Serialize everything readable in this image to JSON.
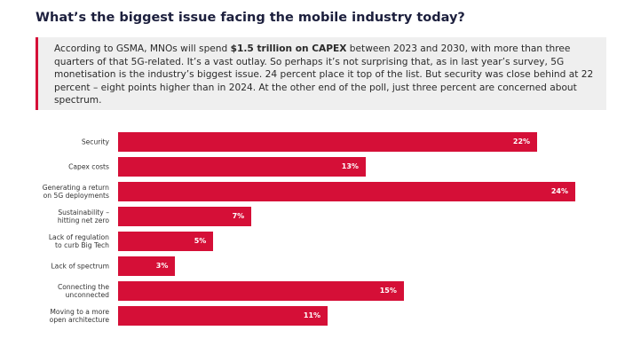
{
  "chart_data": {
    "type": "bar",
    "orientation": "horizontal",
    "title": "What’s the biggest issue facing the mobile industry today?",
    "callout": {
      "before": "According to GSMA, MNOs will spend ",
      "bold": "$1.5 trillion on CAPEX",
      "after": " between 2023 and 2030, with more than three quarters of that 5G-related. It’s a vast outlay. So perhaps it’s not surprising that, as in last year’s survey, 5G monetisation is the industry’s biggest issue. 24 percent place it top of the list. But security was close behind at 22 percent – eight points higher than in 2024. At the other end of the poll, just three percent are concerned about spectrum."
    },
    "categories": [
      "Security",
      "Capex costs",
      "Generating a return\non 5G deployments",
      "Sustainability –\nhitting net zero",
      "Lack of regulation\nto curb Big Tech",
      "Lack of spectrum",
      "Connecting the\nunconnected",
      "Moving to a more\nopen architecture"
    ],
    "values": [
      22,
      13,
      24,
      7,
      5,
      3,
      15,
      11
    ],
    "value_labels": [
      "22%",
      "13%",
      "24%",
      "7%",
      "5%",
      "3%",
      "15%",
      "11%"
    ],
    "color": "#d50f37"
  }
}
